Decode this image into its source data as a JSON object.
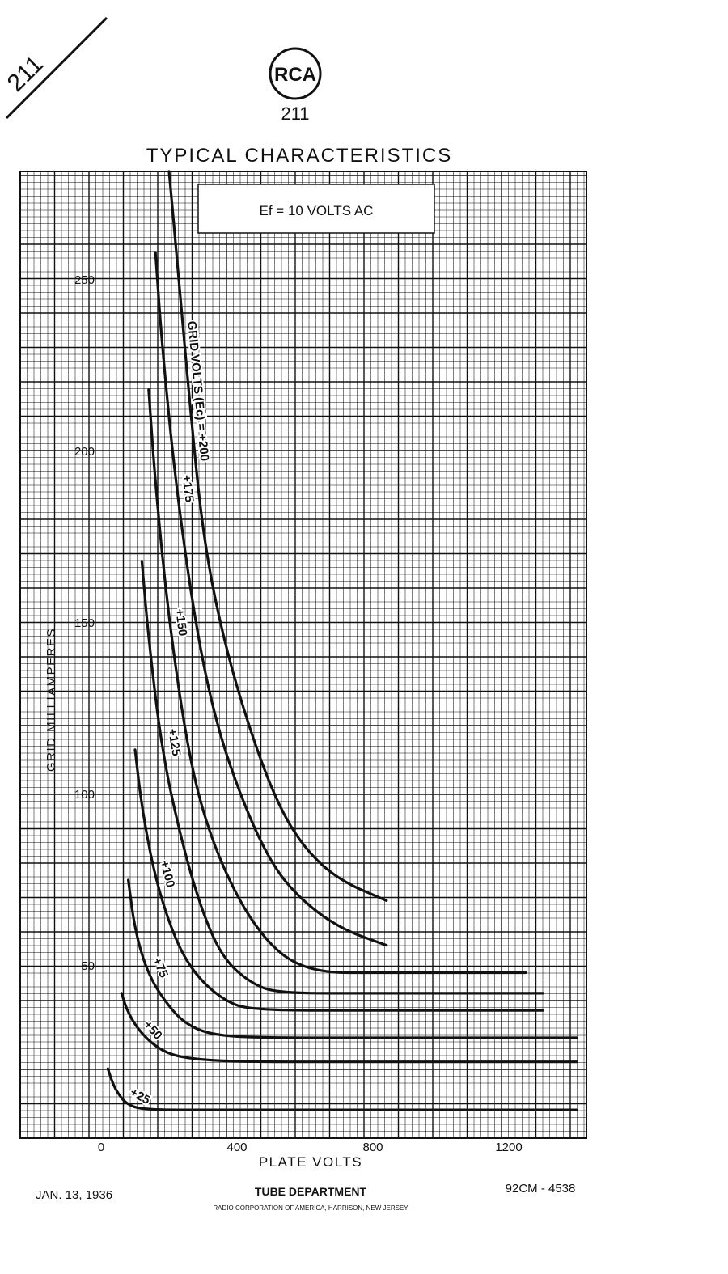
{
  "corner_label": "211",
  "header": {
    "brand": "RCA",
    "tube": "211",
    "title": "TYPICAL CHARACTERISTICS"
  },
  "chart_data": {
    "type": "line",
    "title": "TYPICAL CHARACTERISTICS",
    "condition_box": "Ef = 10 VOLTS AC",
    "xlabel": "PLATE VOLTS",
    "ylabel": "GRID MILLIAMPERES",
    "xlim": [
      0,
      1420
    ],
    "ylim": [
      0,
      280
    ],
    "x_ticks": [
      {
        "value": 0,
        "label": "0"
      },
      {
        "value": 400,
        "label": "400"
      },
      {
        "value": 800,
        "label": "800"
      },
      {
        "value": 1200,
        "label": "1200"
      }
    ],
    "y_ticks": [
      {
        "value": 50,
        "label": "50"
      },
      {
        "value": 100,
        "label": "100"
      },
      {
        "value": 150,
        "label": "150"
      },
      {
        "value": 200,
        "label": "200"
      },
      {
        "value": 250,
        "label": "250"
      }
    ],
    "grid": true,
    "curve_label_prefix": "GRID VOLTS (Ec) = ",
    "series": [
      {
        "name": "+25",
        "points": [
          [
            20,
            20
          ],
          [
            40,
            14
          ],
          [
            80,
            9
          ],
          [
            150,
            8
          ],
          [
            300,
            8
          ],
          [
            600,
            8
          ],
          [
            1000,
            8
          ],
          [
            1400,
            8
          ]
        ]
      },
      {
        "name": "+50",
        "points": [
          [
            60,
            42
          ],
          [
            80,
            36
          ],
          [
            120,
            30
          ],
          [
            180,
            25
          ],
          [
            250,
            23
          ],
          [
            400,
            22
          ],
          [
            800,
            22
          ],
          [
            1400,
            22
          ]
        ]
      },
      {
        "name": "+75",
        "points": [
          [
            80,
            75
          ],
          [
            100,
            60
          ],
          [
            140,
            47
          ],
          [
            200,
            38
          ],
          [
            250,
            33
          ],
          [
            320,
            30
          ],
          [
            450,
            29
          ],
          [
            800,
            29
          ],
          [
            1400,
            29
          ]
        ]
      },
      {
        "name": "+100",
        "points": [
          [
            100,
            113
          ],
          [
            120,
            96
          ],
          [
            160,
            75
          ],
          [
            220,
            57
          ],
          [
            280,
            47
          ],
          [
            360,
            40
          ],
          [
            440,
            37
          ],
          [
            800,
            37
          ],
          [
            1300,
            37
          ]
        ]
      },
      {
        "name": "+125",
        "points": [
          [
            120,
            168
          ],
          [
            140,
            145
          ],
          [
            180,
            112
          ],
          [
            240,
            85
          ],
          [
            300,
            65
          ],
          [
            360,
            52
          ],
          [
            440,
            45
          ],
          [
            520,
            42
          ],
          [
            800,
            42
          ],
          [
            1300,
            42
          ]
        ]
      },
      {
        "name": "+150",
        "points": [
          [
            140,
            218
          ],
          [
            160,
            190
          ],
          [
            200,
            150
          ],
          [
            260,
            110
          ],
          [
            320,
            88
          ],
          [
            400,
            70
          ],
          [
            480,
            58
          ],
          [
            560,
            51
          ],
          [
            660,
            48
          ],
          [
            800,
            48
          ],
          [
            1250,
            48
          ]
        ]
      },
      {
        "name": "+175",
        "points": [
          [
            160,
            258
          ],
          [
            180,
            230
          ],
          [
            220,
            190
          ],
          [
            280,
            148
          ],
          [
            340,
            120
          ],
          [
            420,
            97
          ],
          [
            500,
            80
          ],
          [
            580,
            70
          ],
          [
            700,
            61
          ],
          [
            840,
            56
          ]
        ]
      },
      {
        "name": "+200",
        "points": [
          [
            200,
            300
          ],
          [
            220,
            260
          ],
          [
            260,
            215
          ],
          [
            300,
            175
          ],
          [
            360,
            145
          ],
          [
            440,
            118
          ],
          [
            520,
            97
          ],
          [
            600,
            84
          ],
          [
            700,
            75
          ],
          [
            840,
            69
          ]
        ]
      }
    ]
  },
  "footer": {
    "date": "JAN. 13, 1936",
    "department": "TUBE DEPARTMENT",
    "company": "RADIO CORPORATION OF AMERICA, HARRISON, NEW JERSEY",
    "drawing_number": "92CM - 4538"
  }
}
